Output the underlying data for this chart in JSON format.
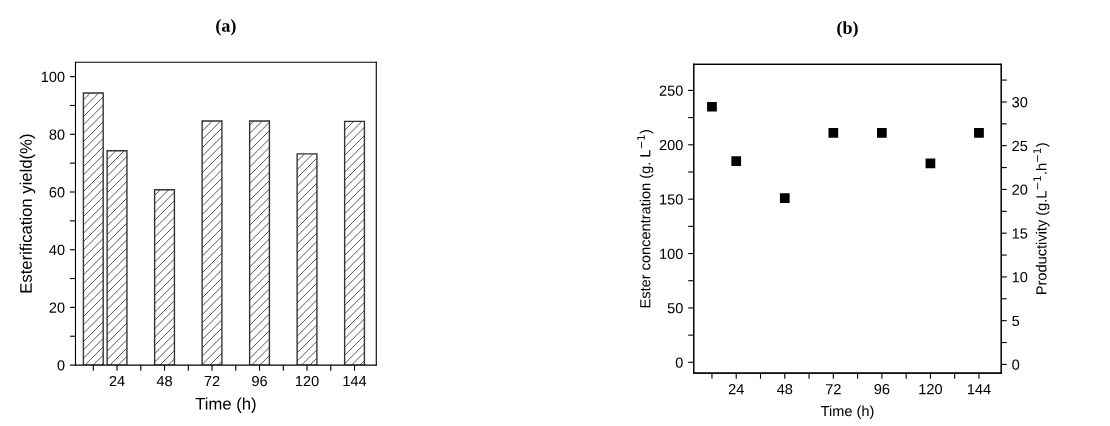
{
  "chart_data": [
    {
      "type": "bar",
      "title": "(a)",
      "xlabel": "Time (h)",
      "ylabel": "Esterification yield(%)",
      "x": [
        12,
        24,
        48,
        72,
        96,
        120,
        144
      ],
      "series": [
        {
          "color": "#333333",
          "values": [
            94.3,
            74.3,
            60.8,
            84.6,
            84.6,
            73.2,
            84.5
          ]
        }
      ],
      "xlim": [
        3,
        155
      ],
      "xticks": [
        {
          "value": 12,
          "label": null
        },
        24,
        {
          "value": 36,
          "label": null
        },
        48,
        {
          "value": 60,
          "label": null
        },
        72,
        {
          "value": 84,
          "label": null
        },
        96,
        {
          "value": 108,
          "label": null
        },
        120,
        {
          "value": 132,
          "label": null
        },
        144
      ],
      "ylim": [
        0,
        105
      ],
      "yticks": [
        0,
        {
          "value": 10,
          "label": null
        },
        20,
        {
          "value": 30,
          "label": null
        },
        40,
        {
          "value": 50,
          "label": null
        },
        60,
        {
          "value": 70,
          "label": null
        },
        80,
        {
          "value": 90,
          "label": null
        },
        100
      ],
      "grid": false,
      "legend": false
    },
    {
      "type": "scatter",
      "title": "(b)",
      "xlabel": "Time (h)",
      "ylabel": "Ester concentration (g. L$^{−1}$)",
      "y2label": "Productivity (g.L$^{−1}$.h$^{−1}$)",
      "x": [
        12,
        24,
        48,
        72,
        96,
        120,
        144
      ],
      "series": [
        {
          "color": "#000000",
          "values": [
            235,
            185,
            151,
            211,
            211,
            183,
            211
          ]
        }
      ],
      "marker": "square",
      "xlim": [
        3,
        155
      ],
      "xticks": [
        {
          "value": 12,
          "label": null
        },
        24,
        {
          "value": 36,
          "label": null
        },
        48,
        {
          "value": 60,
          "label": null
        },
        72,
        {
          "value": 84,
          "label": null
        },
        96,
        {
          "value": 108,
          "label": null
        },
        120,
        {
          "value": 132,
          "label": null
        },
        144
      ],
      "ylim": [
        -10,
        274
      ],
      "yticks": [
        0,
        {
          "value": 25,
          "label": null
        },
        50,
        {
          "value": 75,
          "label": null
        },
        100,
        {
          "value": 125,
          "label": null
        },
        150,
        {
          "value": 175,
          "label": null
        },
        200,
        {
          "value": 225,
          "label": null
        },
        250
      ],
      "y2lim": [
        -1,
        34.3
      ],
      "y2ticks": [
        0,
        {
          "value": 2.5,
          "label": null
        },
        5,
        {
          "value": 7.5,
          "label": null
        },
        10,
        {
          "value": 12.5,
          "label": null
        },
        15,
        {
          "value": 17.5,
          "label": null
        },
        20,
        {
          "value": 22.5,
          "label": null
        },
        25,
        {
          "value": 27.5,
          "label": null
        },
        30,
        {
          "value": 32.5,
          "label": null
        }
      ],
      "grid": false,
      "legend": false
    }
  ]
}
